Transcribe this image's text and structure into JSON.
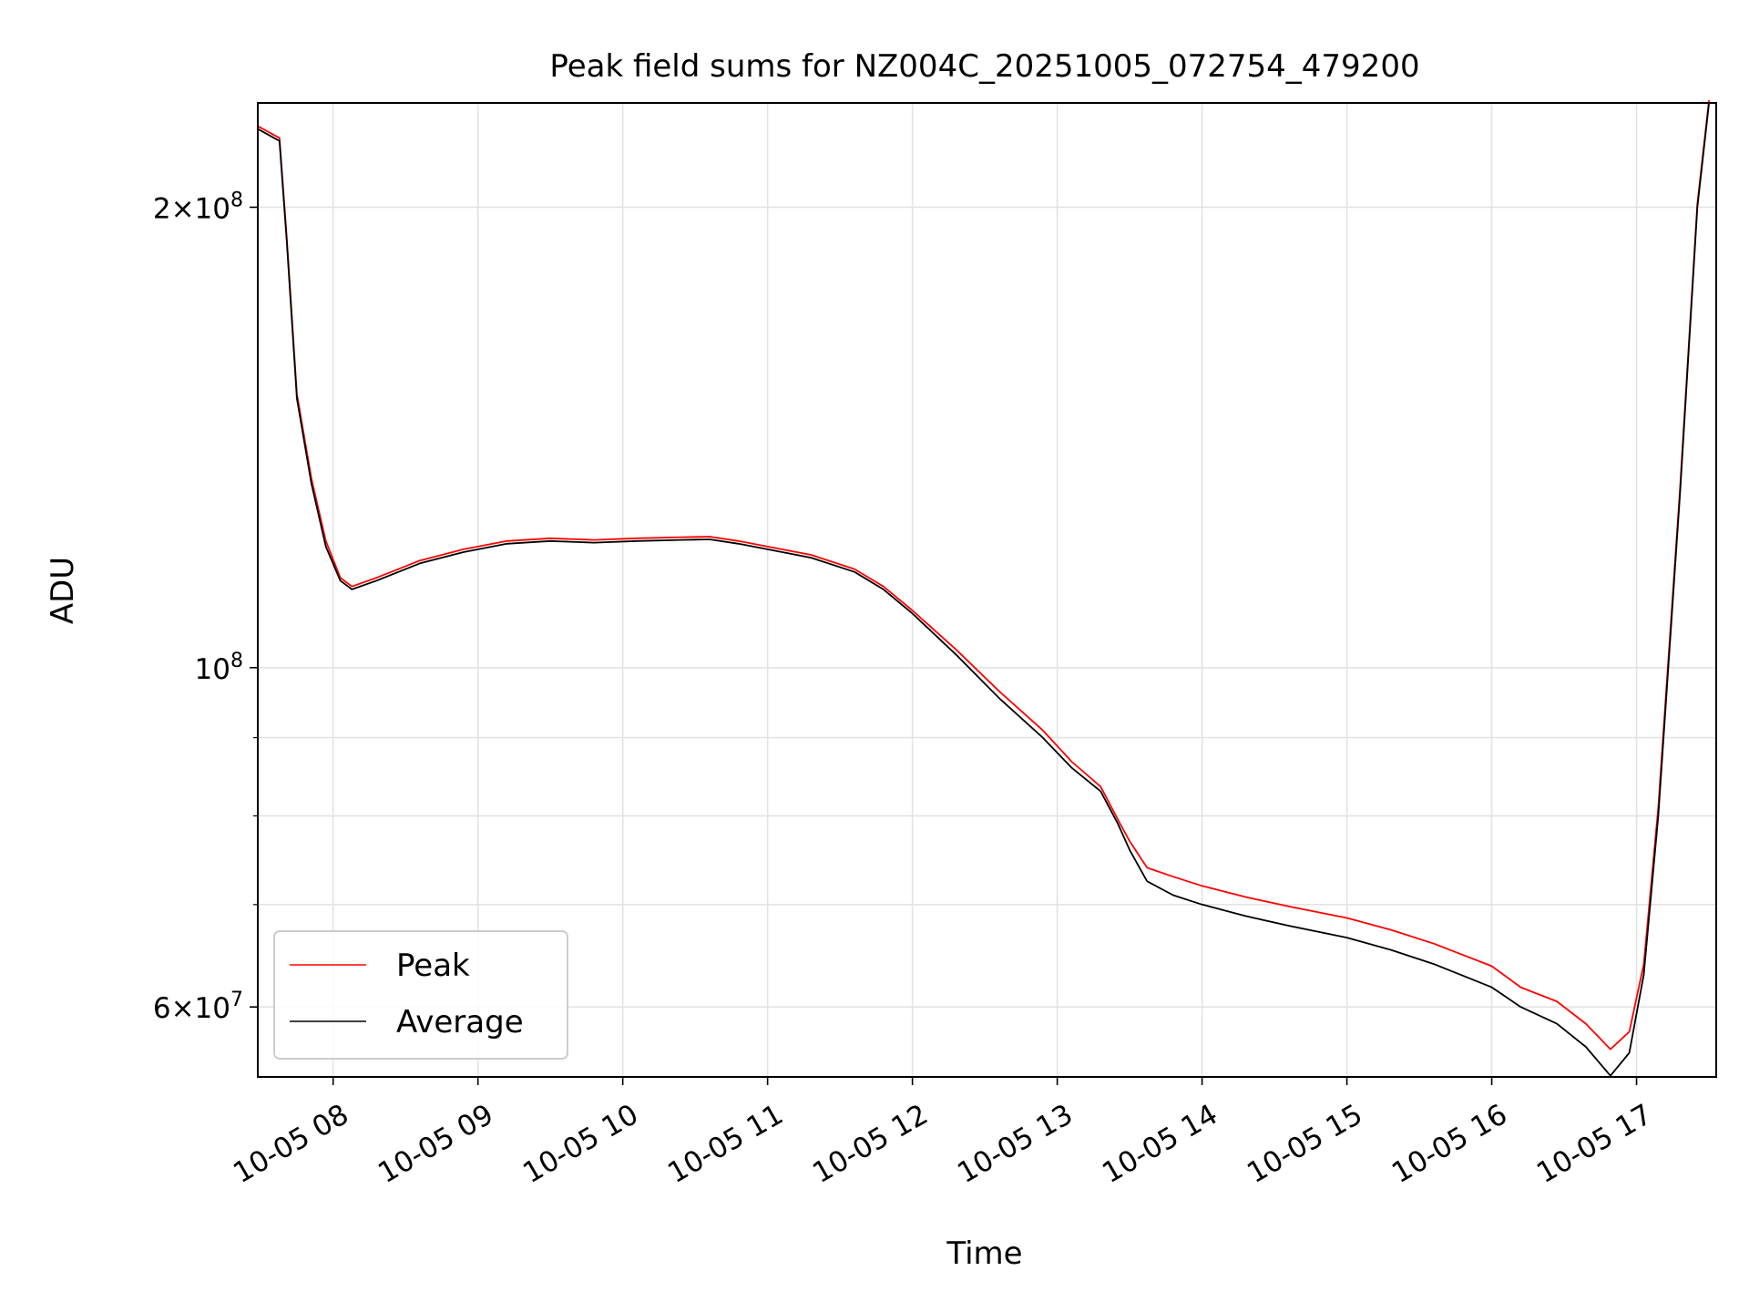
{
  "chart_data": {
    "type": "line",
    "title": "Peak field sums for NZ004C_20251005_072754_479200",
    "xlabel": "Time",
    "ylabel": "ADU",
    "yscale": "log",
    "ylim": [
      54000000,
      234000000
    ],
    "xlim": [
      7.48,
      17.55
    ],
    "grid": true,
    "legend_position": "lower-left",
    "x_ticks": [
      {
        "value": 8,
        "label": "10-05 08"
      },
      {
        "value": 9,
        "label": "10-05 09"
      },
      {
        "value": 10,
        "label": "10-05 10"
      },
      {
        "value": 11,
        "label": "10-05 11"
      },
      {
        "value": 12,
        "label": "10-05 12"
      },
      {
        "value": 13,
        "label": "10-05 13"
      },
      {
        "value": 14,
        "label": "10-05 14"
      },
      {
        "value": 15,
        "label": "10-05 15"
      },
      {
        "value": 16,
        "label": "10-05 16"
      },
      {
        "value": 17,
        "label": "10-05 17"
      }
    ],
    "y_major_ticks": [
      {
        "value": 200000000,
        "mantissa": "2",
        "exponent": "8"
      },
      {
        "value": 100000000,
        "mantissa": "",
        "exponent": "8"
      },
      {
        "value": 60000000,
        "mantissa": "6",
        "exponent": "7"
      }
    ],
    "y_minor_ticks": [
      90000000,
      80000000,
      70000000
    ],
    "times_sign": "×",
    "base": "10",
    "series": [
      {
        "name": "Average",
        "color": "#000000",
        "points": [
          [
            7.48,
            225000000
          ],
          [
            7.63,
            221000000
          ],
          [
            7.68,
            190000000
          ],
          [
            7.75,
            150000000
          ],
          [
            7.85,
            132000000
          ],
          [
            7.95,
            120000000
          ],
          [
            8.05,
            114000000
          ],
          [
            8.13,
            112500000
          ],
          [
            8.3,
            114000000
          ],
          [
            8.6,
            117000000
          ],
          [
            8.9,
            119000000
          ],
          [
            9.2,
            120500000
          ],
          [
            9.5,
            121000000
          ],
          [
            9.8,
            120700000
          ],
          [
            10.1,
            121000000
          ],
          [
            10.4,
            121200000
          ],
          [
            10.6,
            121300000
          ],
          [
            10.8,
            120500000
          ],
          [
            11.0,
            119500000
          ],
          [
            11.3,
            118000000
          ],
          [
            11.6,
            115500000
          ],
          [
            11.8,
            112500000
          ],
          [
            12.0,
            108500000
          ],
          [
            12.3,
            102000000
          ],
          [
            12.6,
            95500000
          ],
          [
            12.9,
            90000000
          ],
          [
            13.1,
            86000000
          ],
          [
            13.3,
            83000000
          ],
          [
            13.42,
            79000000
          ],
          [
            13.5,
            76000000
          ],
          [
            13.62,
            72500000
          ],
          [
            13.8,
            71000000
          ],
          [
            14.0,
            70000000
          ],
          [
            14.3,
            68800000
          ],
          [
            14.6,
            67800000
          ],
          [
            15.0,
            66600000
          ],
          [
            15.3,
            65400000
          ],
          [
            15.6,
            64000000
          ],
          [
            16.0,
            61800000
          ],
          [
            16.2,
            60000000
          ],
          [
            16.45,
            58500000
          ],
          [
            16.65,
            56500000
          ],
          [
            16.82,
            54100000
          ],
          [
            16.95,
            56000000
          ],
          [
            17.05,
            63000000
          ],
          [
            17.15,
            80000000
          ],
          [
            17.3,
            130000000
          ],
          [
            17.42,
            200000000
          ],
          [
            17.5,
            234000000
          ]
        ]
      },
      {
        "name": "Peak",
        "color": "#ff0000",
        "points": [
          [
            7.48,
            226000000
          ],
          [
            7.63,
            222000000
          ],
          [
            7.68,
            191000000
          ],
          [
            7.75,
            151000000
          ],
          [
            7.85,
            133000000
          ],
          [
            7.95,
            121000000
          ],
          [
            8.05,
            114500000
          ],
          [
            8.13,
            113000000
          ],
          [
            8.3,
            114500000
          ],
          [
            8.6,
            117500000
          ],
          [
            8.9,
            119500000
          ],
          [
            9.2,
            121000000
          ],
          [
            9.5,
            121500000
          ],
          [
            9.8,
            121200000
          ],
          [
            10.1,
            121500000
          ],
          [
            10.4,
            121700000
          ],
          [
            10.6,
            121800000
          ],
          [
            10.8,
            121000000
          ],
          [
            11.0,
            120000000
          ],
          [
            11.3,
            118500000
          ],
          [
            11.6,
            116000000
          ],
          [
            11.8,
            113000000
          ],
          [
            12.0,
            109000000
          ],
          [
            12.3,
            102800000
          ],
          [
            12.6,
            96500000
          ],
          [
            12.9,
            91000000
          ],
          [
            13.1,
            86800000
          ],
          [
            13.3,
            83600000
          ],
          [
            13.42,
            79500000
          ],
          [
            13.5,
            77000000
          ],
          [
            13.62,
            74000000
          ],
          [
            13.8,
            73000000
          ],
          [
            14.0,
            72000000
          ],
          [
            14.3,
            70800000
          ],
          [
            14.6,
            69800000
          ],
          [
            15.0,
            68600000
          ],
          [
            15.3,
            67400000
          ],
          [
            15.6,
            66000000
          ],
          [
            16.0,
            63800000
          ],
          [
            16.2,
            61800000
          ],
          [
            16.45,
            60500000
          ],
          [
            16.65,
            58500000
          ],
          [
            16.82,
            56300000
          ],
          [
            16.95,
            57800000
          ],
          [
            17.05,
            64000000
          ],
          [
            17.15,
            81000000
          ],
          [
            17.3,
            131000000
          ],
          [
            17.42,
            201000000
          ],
          [
            17.5,
            235000000
          ]
        ]
      }
    ]
  }
}
